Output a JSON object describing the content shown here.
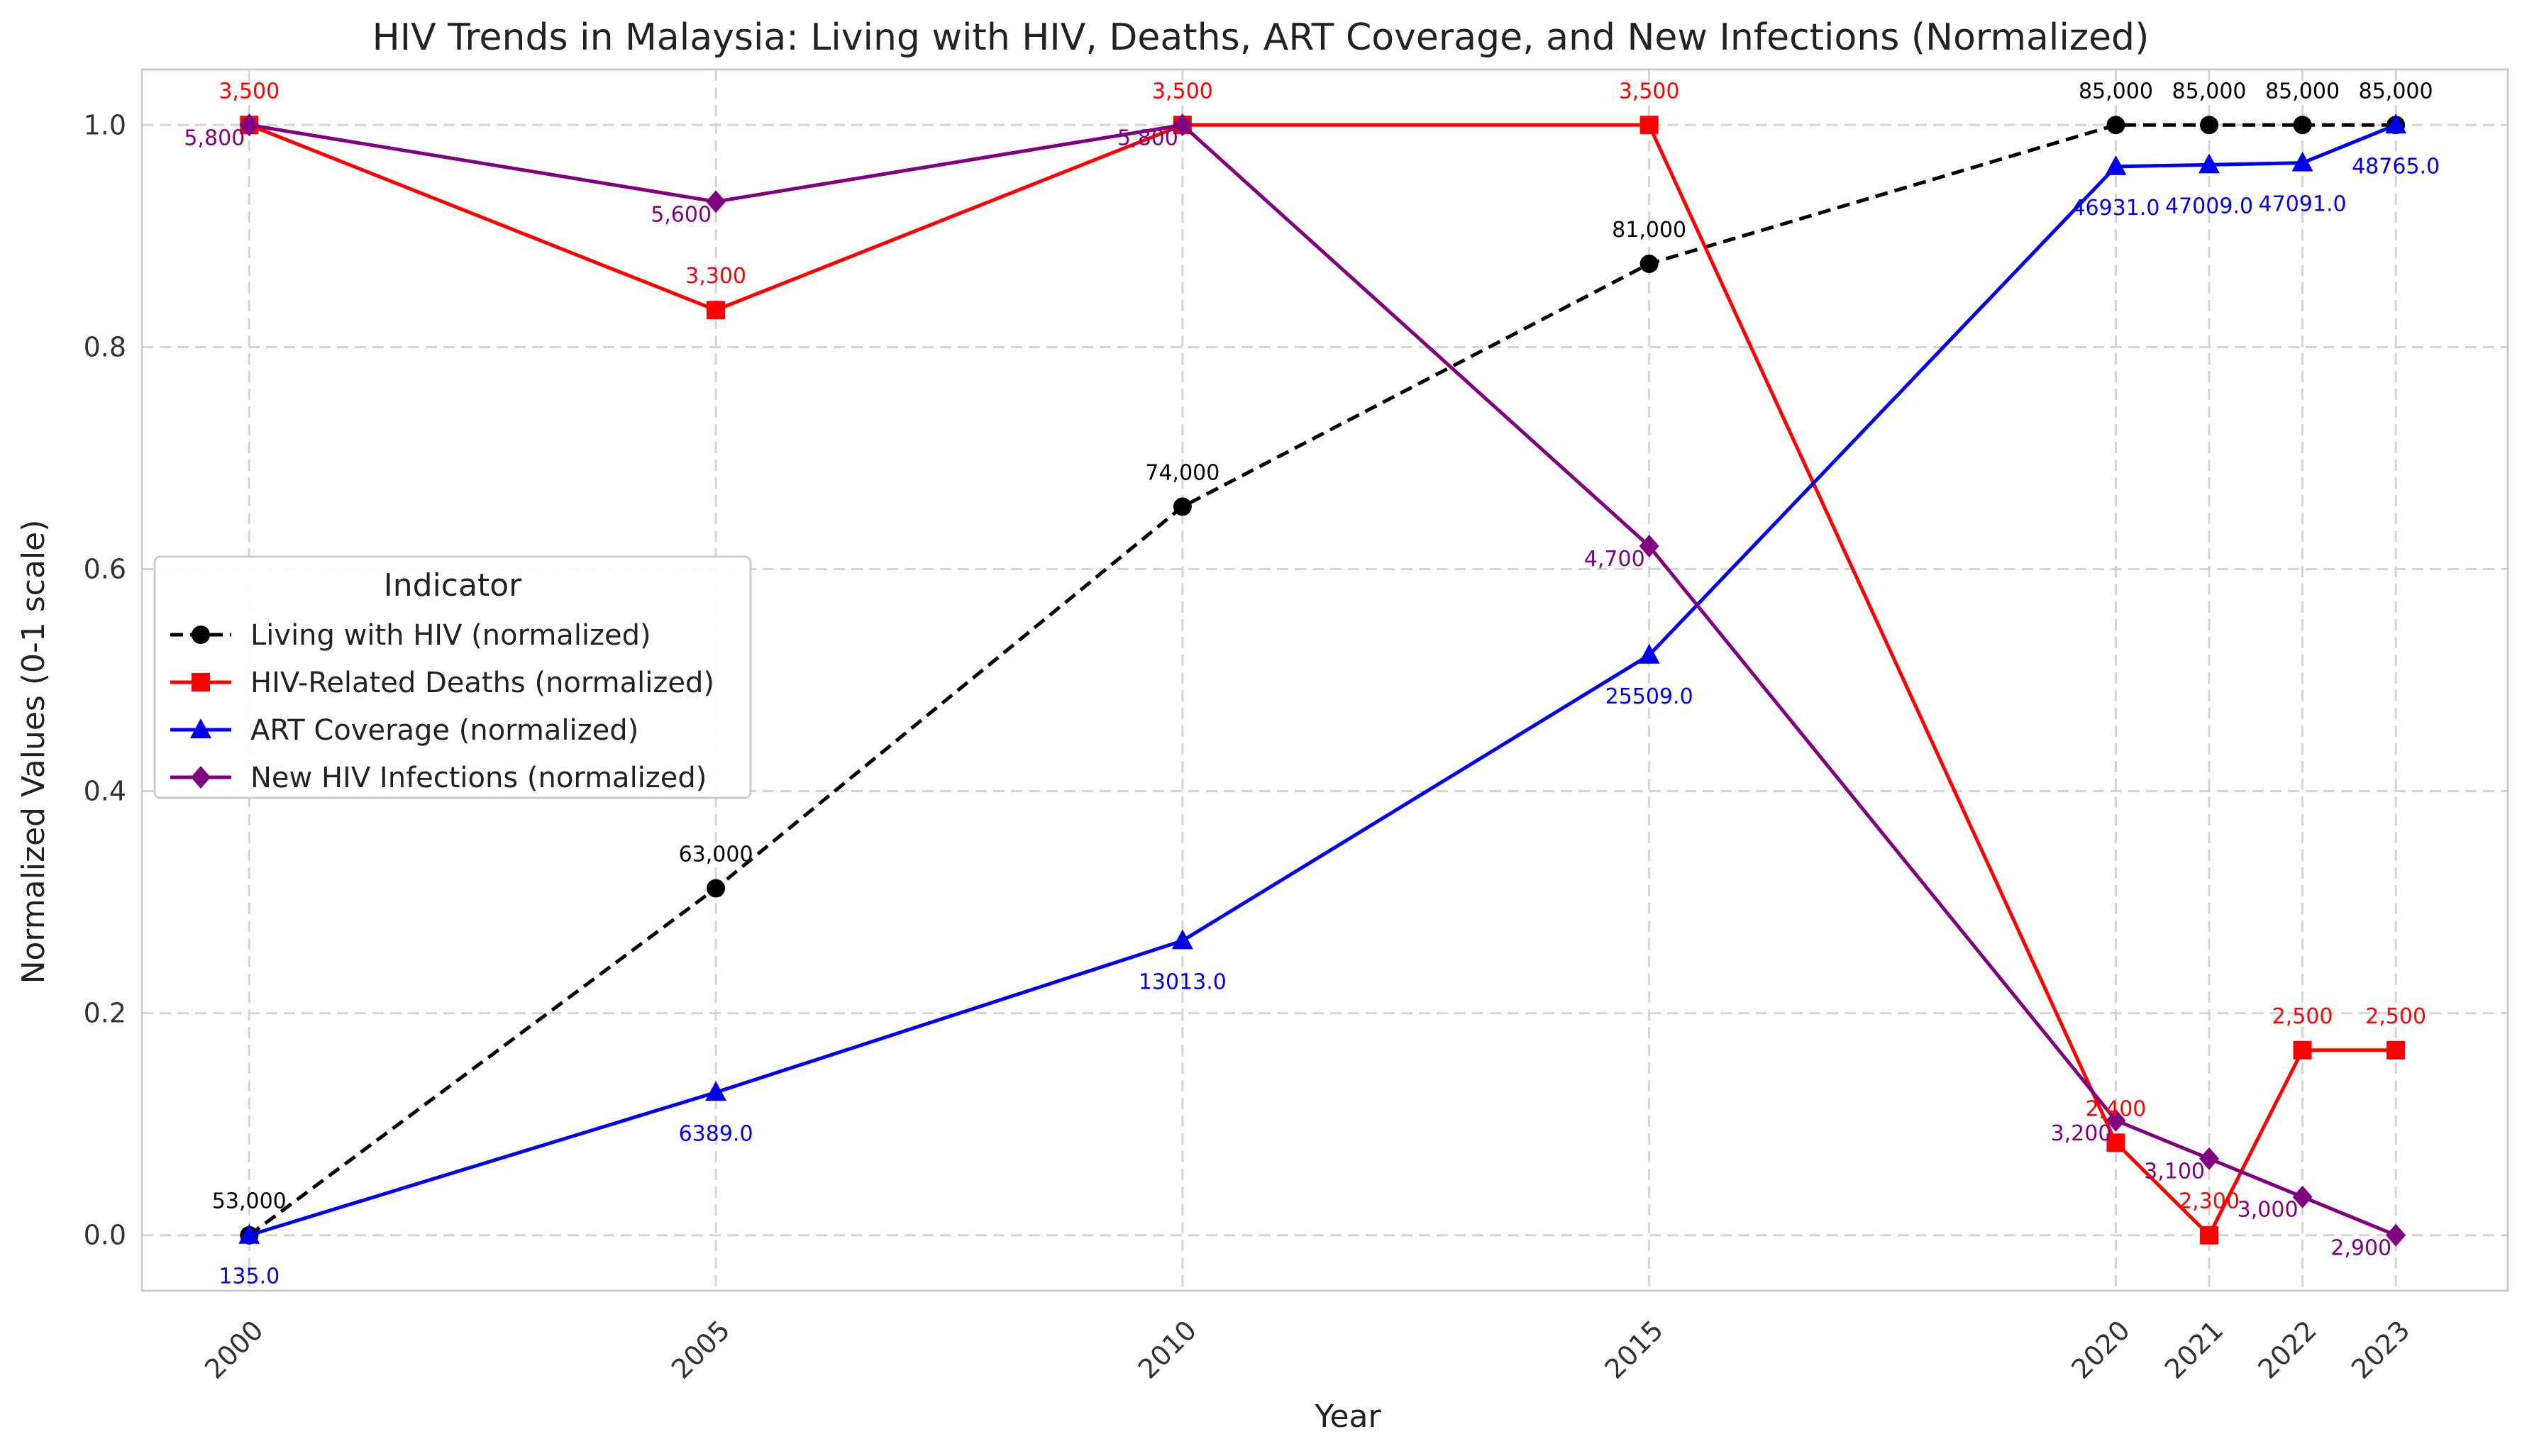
{
  "chart_data": {
    "type": "line",
    "title": "HIV Trends in Malaysia: Living with HIV, Deaths, ART Coverage, and New Infections (Normalized)",
    "xlabel": "Year",
    "ylabel": "Normalized Values (0-1 scale)",
    "x": [
      2000,
      2005,
      2010,
      2015,
      2020,
      2021,
      2022,
      2023
    ],
    "x_tick_labels": [
      "2000",
      "2005",
      "2010",
      "2015",
      "2020",
      "2021",
      "2022",
      "2023"
    ],
    "xlim": [
      1998.85,
      2024.2
    ],
    "ylim": [
      -0.05,
      1.05
    ],
    "y_ticks": [
      0.0,
      0.2,
      0.4,
      0.6,
      0.8,
      1.0
    ],
    "y_tick_labels": [
      "0.0",
      "0.2",
      "0.4",
      "0.6",
      "0.8",
      "1.0"
    ],
    "grid": true,
    "legend_title": "Indicator",
    "legend_position": "center-left",
    "series": [
      {
        "name": "Living with HIV (normalized)",
        "color": "#000000",
        "marker": "circle",
        "dashed": true,
        "values": [
          0.0,
          0.3125,
          0.65625,
          0.875,
          1.0,
          1.0,
          1.0,
          1.0
        ],
        "labels": [
          "53,000",
          "63,000",
          "74,000",
          "81,000",
          "85,000",
          "85,000",
          "85,000",
          "85,000"
        ],
        "label_pos": [
          "above",
          "above",
          "above",
          "above",
          "above",
          "above",
          "above",
          "above"
        ]
      },
      {
        "name": "HIV-Related Deaths (normalized)",
        "color": "#ff0000",
        "marker": "square",
        "dashed": false,
        "values": [
          1.0,
          0.8333,
          1.0,
          1.0,
          0.0833,
          0.0,
          0.1667,
          0.1667
        ],
        "labels": [
          "3,500",
          "3,300",
          "3,500",
          "3,500",
          "2,400",
          "2,300",
          "2,500",
          "2,500"
        ],
        "label_pos": [
          "above",
          "above",
          "above",
          "above",
          "above",
          "above",
          "above",
          "above"
        ]
      },
      {
        "name": "ART Coverage (normalized)",
        "color": "#0000ee",
        "marker": "triangle",
        "dashed": false,
        "values": [
          0.0,
          0.1287,
          0.2653,
          0.5225,
          0.9626,
          0.9642,
          0.9659,
          1.0
        ],
        "labels": [
          "135.0",
          "6389.0",
          "13013.0",
          "25509.0",
          "46931.0",
          "47009.0",
          "47091.0",
          "48765.0"
        ],
        "label_pos": [
          "below",
          "below",
          "below",
          "below",
          "below",
          "below",
          "below",
          "below"
        ]
      },
      {
        "name": "New HIV Infections (normalized)",
        "color": "#800080",
        "marker": "diamond",
        "dashed": false,
        "values": [
          1.0,
          0.931,
          1.0,
          0.6207,
          0.1034,
          0.069,
          0.0345,
          0.0
        ],
        "labels": [
          "5,800",
          "5,600",
          "5,800",
          "4,700",
          "3,200",
          "3,100",
          "3,000",
          "2,900"
        ],
        "label_pos": [
          "below-left",
          "below-left",
          "below-left",
          "below-left",
          "below-left",
          "below-left",
          "below-left",
          "below-left"
        ]
      }
    ]
  }
}
